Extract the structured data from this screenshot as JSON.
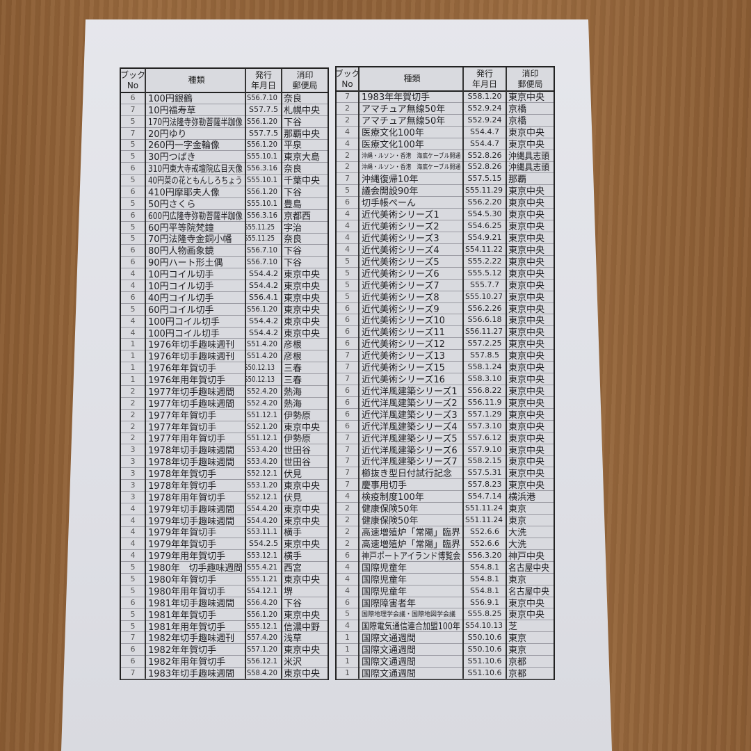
{
  "headers": {
    "book_no_line1": "ブック",
    "book_no_line2": "No",
    "type": "種類",
    "issue_line1": "発行",
    "issue_line2": "年月日",
    "postmark_line1": "消印",
    "postmark_line2": "郵便局"
  },
  "left_table": [
    [
      "6",
      "100円銀鶴",
      "S56.7.10",
      "奈良"
    ],
    [
      "7",
      "10円福寿草",
      "S57.7.5",
      "札幌中央"
    ],
    [
      "5",
      "170円法隆寺弥勒菩薩半跏像",
      "S56.1.20",
      "下谷"
    ],
    [
      "7",
      "20円ゆり",
      "S57.7.5",
      "那覇中央"
    ],
    [
      "5",
      "260円一字金輪像",
      "S56.1.20",
      "平泉"
    ],
    [
      "5",
      "30円つばき",
      "S55.10.1",
      "東京大島"
    ],
    [
      "6",
      "310円東大寺戒壇院広目天像",
      "S56.3.16",
      "奈良"
    ],
    [
      "5",
      "40円菜の花ともんしろちょう",
      "S55.10.1",
      "千葉中央"
    ],
    [
      "6",
      "410円摩耶夫人像",
      "S56.1.20",
      "下谷"
    ],
    [
      "5",
      "50円さくら",
      "S55.10.1",
      "豊島"
    ],
    [
      "6",
      "600円広隆寺弥勒菩薩半跏像",
      "S56.3.16",
      "京都西"
    ],
    [
      "5",
      "60円平等院梵鐘",
      "S55.11.25",
      "宇治"
    ],
    [
      "5",
      "70円法隆寺金銅小幡",
      "S55.11.25",
      "奈良"
    ],
    [
      "6",
      "80円人物画象鏡",
      "S56.7.10",
      "下谷"
    ],
    [
      "6",
      "90円ハート形土偶",
      "S56.7.10",
      "下谷"
    ],
    [
      "4",
      "10円コイル切手",
      "S54.4.2",
      "東京中央"
    ],
    [
      "4",
      "10円コイル切手",
      "S54.4.2",
      "東京中央"
    ],
    [
      "6",
      "40円コイル切手",
      "S56.4.1",
      "東京中央"
    ],
    [
      "5",
      "60円コイル切手",
      "S56.1.20",
      "東京中央"
    ],
    [
      "4",
      "100円コイル切手",
      "S54.4.2",
      "東京中央"
    ],
    [
      "4",
      "100円コイル切手",
      "S54.4.2",
      "東京中央"
    ],
    [
      "1",
      "1976年切手趣味週刊",
      "S51.4.20",
      "彦根"
    ],
    [
      "1",
      "1976年切手趣味週刊",
      "S51.4.20",
      "彦根"
    ],
    [
      "1",
      "1976年年賀切手",
      "S50.12.13",
      "三春"
    ],
    [
      "1",
      "1976年用年賀切手",
      "S50.12.13",
      "三春"
    ],
    [
      "2",
      "1977年切手趣味週間",
      "S52.4.20",
      "熱海"
    ],
    [
      "2",
      "1977年切手趣味週間",
      "S52.4.20",
      "熱海"
    ],
    [
      "2",
      "1977年年賀切手",
      "S51.12.1",
      "伊勢原"
    ],
    [
      "2",
      "1977年年賀切手",
      "S52.1.20",
      "東京中央"
    ],
    [
      "2",
      "1977年用年賀切手",
      "S51.12.1",
      "伊勢原"
    ],
    [
      "3",
      "1978年切手趣味週間",
      "S53.4.20",
      "世田谷"
    ],
    [
      "3",
      "1978年切手趣味週間",
      "S53.4.20",
      "世田谷"
    ],
    [
      "3",
      "1978年年賀切手",
      "S52.12.1",
      "伏見"
    ],
    [
      "3",
      "1978年年賀切手",
      "S53.1.20",
      "東京中央"
    ],
    [
      "3",
      "1978年用年賀切手",
      "S52.12.1",
      "伏見"
    ],
    [
      "4",
      "1979年切手趣味週間",
      "S54.4.20",
      "東京中央"
    ],
    [
      "4",
      "1979年切手趣味週間",
      "S54.4.20",
      "東京中央"
    ],
    [
      "4",
      "1979年年賀切手",
      "S53.11.1",
      "横手"
    ],
    [
      "4",
      "1979年年賀切手",
      "S54.2.5",
      "東京中央"
    ],
    [
      "4",
      "1979年用年賀切手",
      "S53.12.1",
      "横手"
    ],
    [
      "5",
      "1980年　切手趣味週間",
      "S55.4.21",
      "西宮"
    ],
    [
      "5",
      "1980年年賀切手",
      "S55.1.21",
      "東京中央"
    ],
    [
      "5",
      "1980年用年賀切手",
      "S54.12.1",
      "堺"
    ],
    [
      "6",
      "1981年切手趣味週間",
      "S56.4.20",
      "下谷"
    ],
    [
      "5",
      "1981年年賀切手",
      "S56.1.20",
      "東京中央"
    ],
    [
      "5",
      "1981年用年賀切手",
      "S55.12.1",
      "信濃中野"
    ],
    [
      "7",
      "1982年切手趣味週刊",
      "S57.4.20",
      "浅草"
    ],
    [
      "6",
      "1982年年賀切手",
      "S57.1.20",
      "東京中央"
    ],
    [
      "6",
      "1982年用年賀切手",
      "S56.12.1",
      "米沢"
    ],
    [
      "7",
      "1983年切手趣味週間",
      "S58.4.20",
      "東京中央"
    ]
  ],
  "right_table": [
    [
      "7",
      "1983年年賀切手",
      "S58.1.20",
      "東京中央"
    ],
    [
      "2",
      "アマチュア無線50年",
      "S52.9.24",
      "京橋"
    ],
    [
      "2",
      "アマチュア無線50年",
      "S52.9.24",
      "京橋"
    ],
    [
      "4",
      "医療文化100年",
      "S54.4.7",
      "東京中央"
    ],
    [
      "4",
      "医療文化100年",
      "S54.4.7",
      "東京中央"
    ],
    [
      "2",
      "沖縄・ルソン・香港　海底ケーブル開通",
      "S52.8.26",
      "沖縄具志頭"
    ],
    [
      "2",
      "沖縄・ルソン・香港　海底ケーブル開通",
      "S52.8.26",
      "沖縄具志頭"
    ],
    [
      "7",
      "沖縄復帰10年",
      "S57.5.15",
      "那覇"
    ],
    [
      "5",
      "議会開設90年",
      "S55.11.29",
      "東京中央"
    ],
    [
      "6",
      "切手帳ぺーん",
      "S56.2.20",
      "東京中央"
    ],
    [
      "4",
      "近代美術シリーズ1",
      "S54.5.30",
      "東京中央"
    ],
    [
      "4",
      "近代美術シリーズ2",
      "S54.6.25",
      "東京中央"
    ],
    [
      "4",
      "近代美術シリーズ3",
      "S54.9.21",
      "東京中央"
    ],
    [
      "4",
      "近代美術シリーズ4",
      "S54.11.22",
      "東京中央"
    ],
    [
      "5",
      "近代美術シリーズ5",
      "S55.2.22",
      "東京中央"
    ],
    [
      "5",
      "近代美術シリーズ6",
      "S55.5.12",
      "東京中央"
    ],
    [
      "5",
      "近代美術シリーズ7",
      "S55.7.7",
      "東京中央"
    ],
    [
      "5",
      "近代美術シリーズ8",
      "S55.10.27",
      "東京中央"
    ],
    [
      "6",
      "近代美術シリーズ9",
      "S56.2.26",
      "東京中央"
    ],
    [
      "6",
      "近代美術シリーズ10",
      "S56.6.18",
      "東京中央"
    ],
    [
      "6",
      "近代美術シリーズ11",
      "S56.11.27",
      "東京中央"
    ],
    [
      "6",
      "近代美術シリーズ12",
      "S57.2.25",
      "東京中央"
    ],
    [
      "7",
      "近代美術シリーズ13",
      "S57.8.5",
      "東京中央"
    ],
    [
      "7",
      "近代美術シリーズ15",
      "S58.1.24",
      "東京中央"
    ],
    [
      "7",
      "近代美術シリーズ16",
      "S58.3.10",
      "東京中央"
    ],
    [
      "6",
      "近代洋風建築シリーズ1",
      "S56.8.22",
      "東京中央"
    ],
    [
      "6",
      "近代洋風建築シリーズ2",
      "S56.11.9",
      "東京中央"
    ],
    [
      "6",
      "近代洋風建築シリーズ3",
      "S57.1.29",
      "東京中央"
    ],
    [
      "6",
      "近代洋風建築シリーズ4",
      "S57.3.10",
      "東京中央"
    ],
    [
      "7",
      "近代洋風建築シリーズ5",
      "S57.6.12",
      "東京中央"
    ],
    [
      "7",
      "近代洋風建築シリーズ6",
      "S57.9.10",
      "東京中央"
    ],
    [
      "7",
      "近代洋風建築シリーズ7",
      "S58.2.15",
      "東京中央"
    ],
    [
      "7",
      "櫛抜き型日付試行記念",
      "S57.5.31",
      "東京中央"
    ],
    [
      "7",
      "慶事用切手",
      "S57.8.23",
      "東京中央"
    ],
    [
      "4",
      "検疫制度100年",
      "S54.7.14",
      "横浜港"
    ],
    [
      "2",
      "健康保険50年",
      "S51.11.24",
      "東京"
    ],
    [
      "2",
      "健康保険50年",
      "S51.11.24",
      "東京"
    ],
    [
      "2",
      "高速増殖炉「常陽」臨界",
      "S52.6.6",
      "大洗"
    ],
    [
      "2",
      "高速増殖炉「常陽」臨界",
      "S52.6.6",
      "大洗"
    ],
    [
      "6",
      "神戸ポートアイランド博覧会",
      "S56.3.20",
      "神戸中央"
    ],
    [
      "4",
      "国際児童年",
      "S54.8.1",
      "名古屋中央"
    ],
    [
      "4",
      "国際児童年",
      "S54.8.1",
      "東京"
    ],
    [
      "4",
      "国際児童年",
      "S54.8.1",
      "名古屋中央"
    ],
    [
      "6",
      "国際障害者年",
      "S56.9.1",
      "東京中央"
    ],
    [
      "5",
      "国際地理学会議・国際地図学会議",
      "S55.8.25",
      "東京中央"
    ],
    [
      "4",
      "国際電気通信連合加盟100年",
      "S54.10.13",
      "芝"
    ],
    [
      "1",
      "国際文通週間",
      "S50.10.6",
      "東京"
    ],
    [
      "1",
      "国際文通週間",
      "S50.10.6",
      "東京"
    ],
    [
      "1",
      "国際文通週間",
      "S51.10.6",
      "京都"
    ],
    [
      "1",
      "国際文通週間",
      "S51.10.6",
      "京都"
    ]
  ]
}
